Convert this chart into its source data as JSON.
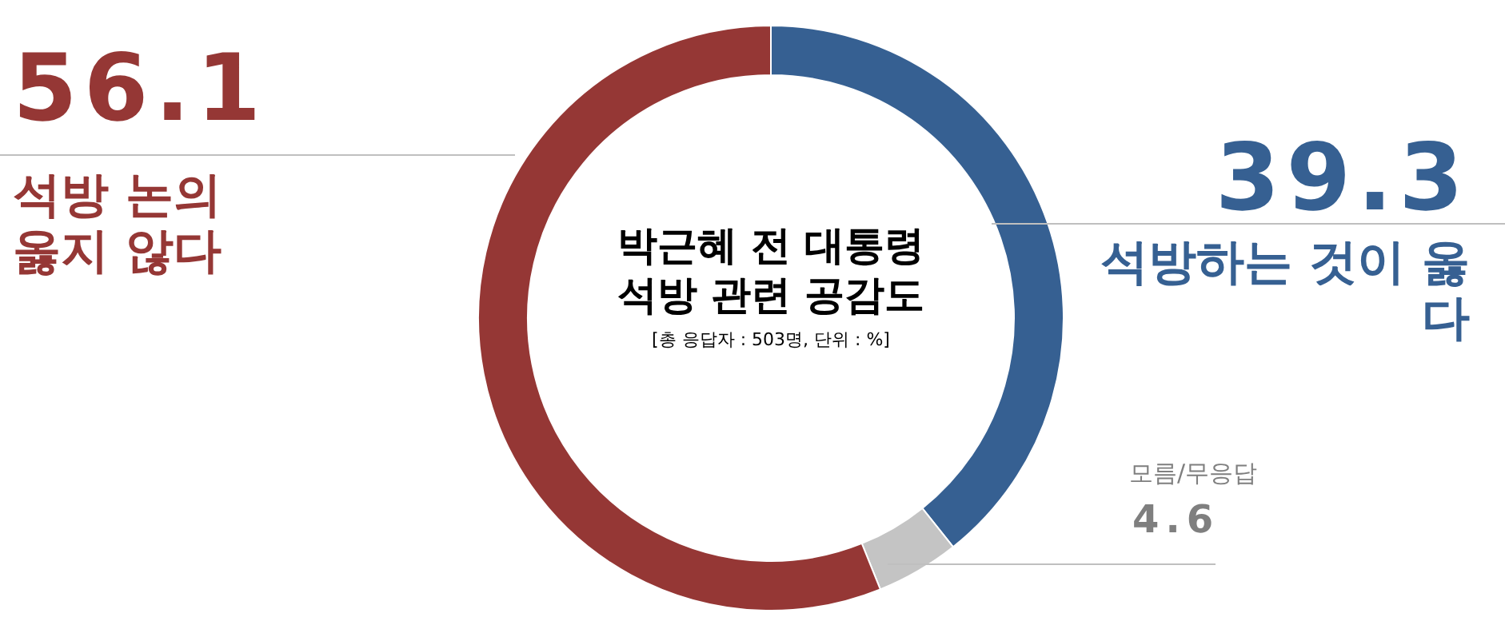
{
  "chart_data": {
    "type": "donut",
    "title": "박근혜 전 대통령 석방 관련 공감도",
    "subtitle": "[총 응답자 : 503명, 단위 : %]",
    "categories": [
      "석방하는 것이 옳다",
      "모름/무응답",
      "석방 논의 옳지 않다"
    ],
    "values": [
      39.3,
      4.6,
      56.1
    ],
    "colors": [
      "#366092",
      "#c4c4c4",
      "#953735"
    ],
    "data_labels": true
  }
}
